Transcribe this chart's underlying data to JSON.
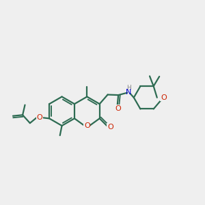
{
  "bg_color": "#efefef",
  "bond_color": "#2d6b52",
  "oxygen_color": "#cc2200",
  "nitrogen_color": "#0000cc",
  "h_color": "#888888",
  "lw": 1.6,
  "figsize": [
    3.0,
    3.0
  ],
  "dpi": 100,
  "xlim": [
    0.0,
    10.5
  ],
  "ylim": [
    3.2,
    8.2
  ]
}
